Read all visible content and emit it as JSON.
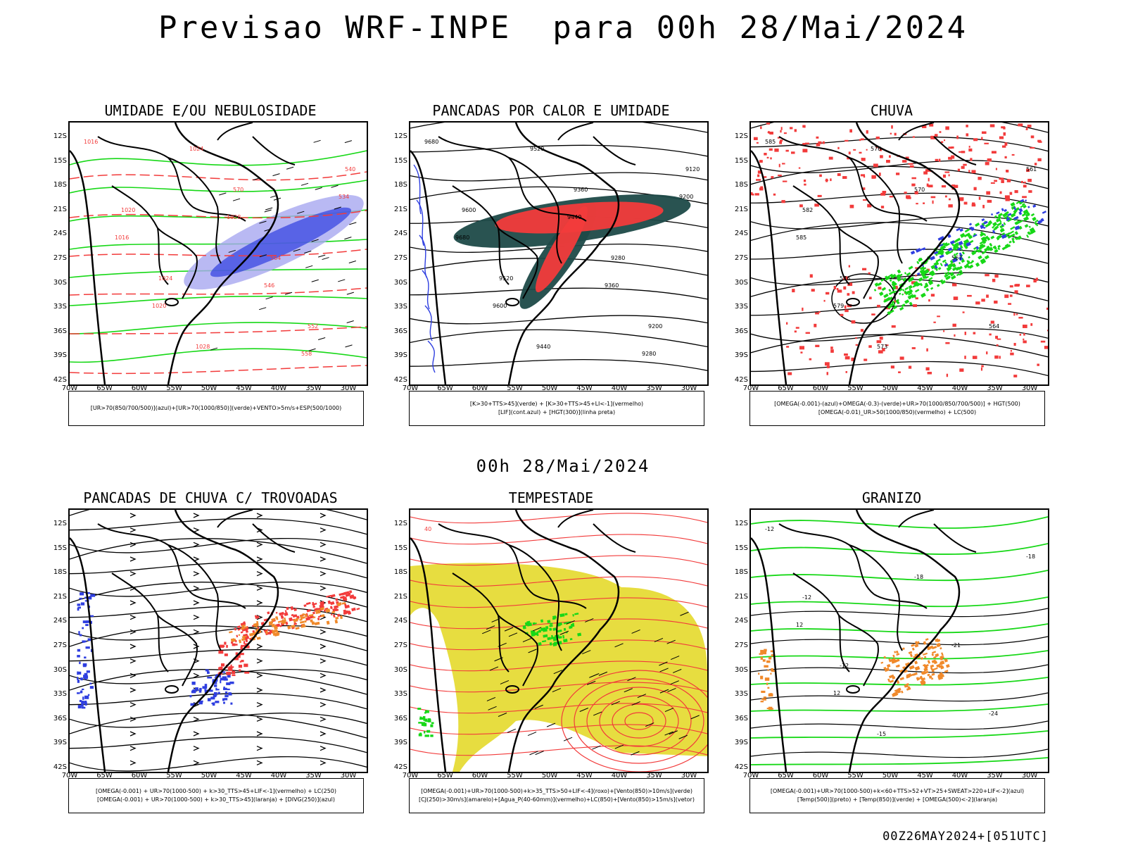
{
  "header": {
    "title": "Previsao WRF-INPE  para 00h 28/Mai/2024",
    "mid_title": "00h 28/Mai/2024",
    "footer": "00Z26MAY2024+[051UTC]"
  },
  "axes": {
    "lat_labels": [
      "12S",
      "15S",
      "18S",
      "21S",
      "24S",
      "27S",
      "30S",
      "33S",
      "36S",
      "39S",
      "42S"
    ],
    "lon_labels": [
      "70W",
      "65W",
      "60W",
      "55W",
      "50W",
      "45W",
      "40W",
      "35W",
      "30W"
    ]
  },
  "colors": {
    "blue": "#2f3fe0",
    "green": "#17d817",
    "red": "#f23b3b",
    "orange": "#f0892a",
    "yellow": "#e4d92b",
    "dark_teal": "#1e4a48",
    "lavender": "#a8a8f0"
  },
  "panels": [
    {
      "id": "umidade",
      "title": "UMIDADE E/OU NEBULOSIDADE",
      "legend": [
        "[UR>70(850/700/500)](azul)+[UR>70(1000/850)](verde)+VENTO>5m/s+ESP(500/1000)"
      ],
      "labels": [
        "1016",
        "1020",
        "1024",
        "1028",
        "570",
        "564",
        "552",
        "540",
        "1016",
        "1020",
        "1024",
        "1028",
        "546",
        "558",
        "534"
      ]
    },
    {
      "id": "pancadas_calor",
      "title": "PANCADAS POR CALOR E UMIDADE",
      "legend": [
        "[K>30+TTS>45](verde) + [K>30+TTS>45+LI<-1](vermelho)",
        "[LIF](cont.azul) + [HGT(300)](linha preta)"
      ],
      "labels": [
        "9680",
        "9600",
        "9520",
        "9440",
        "9360",
        "9280",
        "9200",
        "9120",
        "9680",
        "9600",
        "9520",
        "9440",
        "9360",
        "9280",
        "9200"
      ]
    },
    {
      "id": "chuva",
      "title": "CHUVA",
      "legend": [
        "[OMEGA(-0.001)-(azul)+OMEGA(-0.3)-(verde)+UR>70(1000/850/700/500)] + HGT(500)",
        "[OMEGA(-0.01)_UR>50(1000/850)(vermelho) + LC(500)"
      ],
      "labels": [
        "585",
        "582",
        "576",
        "573",
        "570",
        "567",
        "564",
        "561",
        "585",
        "579",
        "576"
      ]
    },
    {
      "id": "pancadas_trovoadas",
      "title": "PANCADAS DE CHUVA C/ TROVOADAS",
      "legend": [
        "[OMEGA(-0.001) + UR>70(1000-500) + k>30_TTS>45+LIF<-1](vermelho) + LC(250)",
        "[OMEGA(-0.001) + UR>70(1000-500) + k>30_TTS>45](laranja) + [DIVG(250)](azul)"
      ],
      "labels": []
    },
    {
      "id": "tempestade",
      "title": "TEMPESTADE",
      "legend": [
        "[OMEGA(-0.001)+UR>70(1000-500)+k>35_TTS>50+LIF<-4](roxo)+[Vento(850)>10m/s](verde)",
        "[CJ(250)>30m/s](amarelo)+[Agua_P(40-60mm)](vermelho)+LC(850)+[Vento(850)>15m/s](vetor)"
      ],
      "labels": [
        "40"
      ]
    },
    {
      "id": "granizo",
      "title": "GRANIZO",
      "legend": [
        "[OMEGA(-0.001)+UR>70(1000-500)+k<60+TTS>52+VT>25+SWEAT>220+LIF<-2](azul)",
        "[Temp(500)](preto) + [Temp(850)](verde) + [OMEGA(500)<-2](laranja)"
      ],
      "labels": [
        "-12",
        "-12",
        "-12",
        "-15",
        "-18",
        "-21",
        "-24",
        "-18",
        "12",
        "12"
      ]
    }
  ]
}
